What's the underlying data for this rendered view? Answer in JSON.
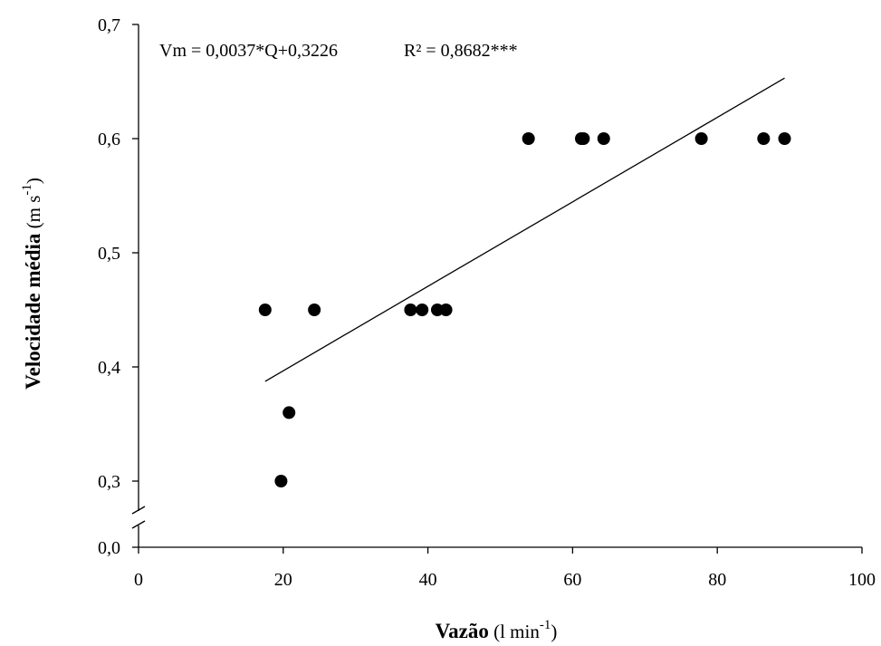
{
  "chart_data": {
    "type": "scatter",
    "title": "",
    "annotation": {
      "equation": "Vm = 0,0037*Q+0,3226",
      "r2": "R² = 0,8682***"
    },
    "xlabel": {
      "bold": "Vazão",
      "unit_main": " (l min",
      "unit_sup": "-1",
      "unit_end": ")"
    },
    "ylabel": {
      "bold": "Velocidade média",
      "unit_main": " (m s",
      "unit_sup": "-1",
      "unit_end": ")"
    },
    "xlim": [
      0,
      100
    ],
    "ylim_main": [
      0.3,
      0.7
    ],
    "y_break": {
      "below": 0.0
    },
    "x_ticks": [
      {
        "value": 0,
        "label": "0"
      },
      {
        "value": 20,
        "label": "20"
      },
      {
        "value": 40,
        "label": "40"
      },
      {
        "value": 60,
        "label": "60"
      },
      {
        "value": 80,
        "label": "80"
      },
      {
        "value": 100,
        "label": "100"
      }
    ],
    "y_ticks": [
      {
        "value": 0.3,
        "label": "0,3"
      },
      {
        "value": 0.4,
        "label": "0,4"
      },
      {
        "value": 0.5,
        "label": "0,5"
      },
      {
        "value": 0.6,
        "label": "0,6"
      },
      {
        "value": 0.7,
        "label": "0,7"
      }
    ],
    "y_break_tick": {
      "value": 0.0,
      "label": "0,0"
    },
    "points": [
      {
        "x": 17.5,
        "y": 0.45
      },
      {
        "x": 19.7,
        "y": 0.3
      },
      {
        "x": 20.8,
        "y": 0.36
      },
      {
        "x": 24.3,
        "y": 0.45
      },
      {
        "x": 37.6,
        "y": 0.45
      },
      {
        "x": 39.2,
        "y": 0.45
      },
      {
        "x": 41.3,
        "y": 0.45
      },
      {
        "x": 42.5,
        "y": 0.45
      },
      {
        "x": 53.9,
        "y": 0.6
      },
      {
        "x": 61.2,
        "y": 0.6
      },
      {
        "x": 61.5,
        "y": 0.6
      },
      {
        "x": 64.3,
        "y": 0.6
      },
      {
        "x": 77.8,
        "y": 0.6
      },
      {
        "x": 86.4,
        "y": 0.6
      },
      {
        "x": 89.3,
        "y": 0.6
      }
    ],
    "trendline": {
      "slope": 0.0037,
      "intercept": 0.3226,
      "x_start": 17.5,
      "x_end": 89.3
    },
    "grid": false,
    "legend": "none"
  }
}
